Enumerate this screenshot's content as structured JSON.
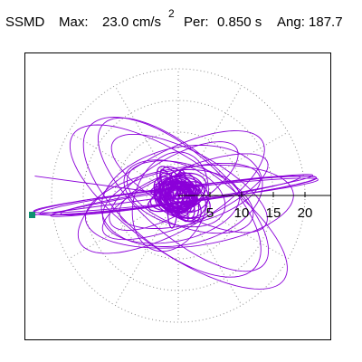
{
  "header": {
    "component": "SSMD",
    "max_label": "Max:",
    "max_value": "23.0 cm/s",
    "max_exponent": "2",
    "period_label": "Per:",
    "period_value": "0.850 s",
    "angle_label": "Ang: 187.7"
  },
  "plot": {
    "type": "polar-orbit",
    "radial_ticks": [
      "5",
      "10",
      "15",
      "20"
    ],
    "angle_deg": 187.7,
    "colors": {
      "trace": "#8b00d9",
      "grid": "#888888",
      "axis": "#000000",
      "marker": "#109070",
      "frame": "#000000"
    }
  }
}
